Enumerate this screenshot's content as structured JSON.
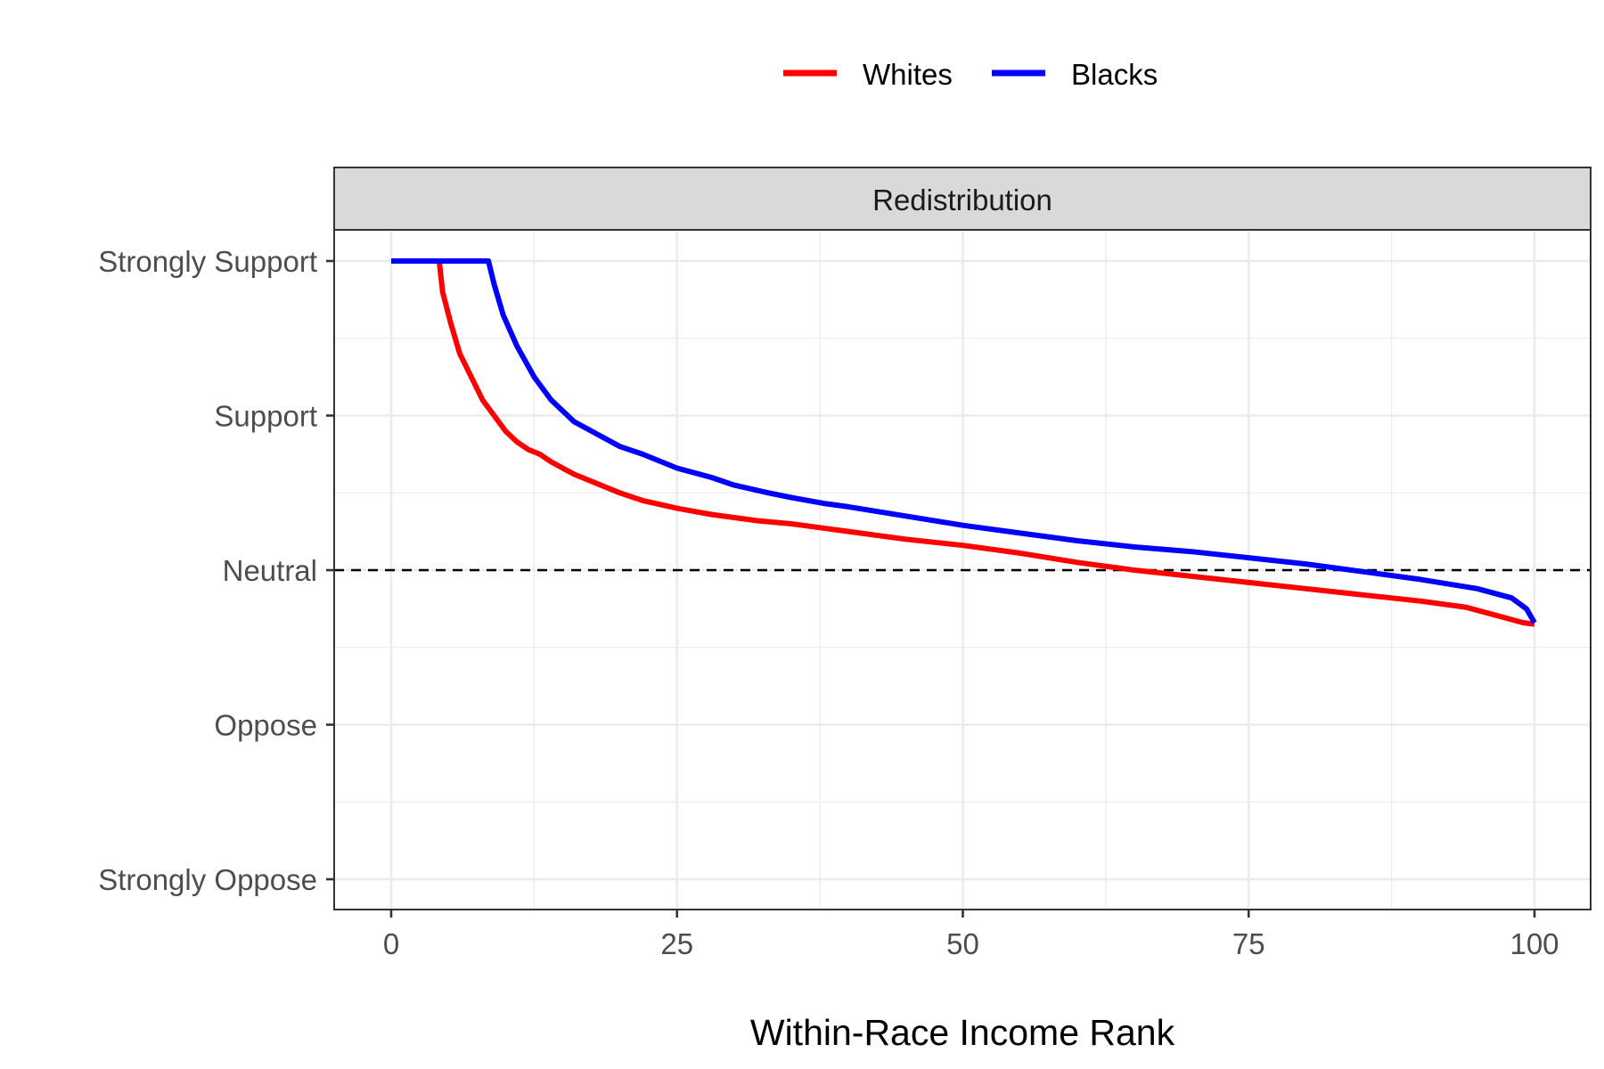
{
  "chart_data": {
    "type": "line",
    "title": "",
    "facet_label": "Redistribution",
    "xlabel": "Within-Race Income Rank",
    "ylabel": "",
    "xlim": [
      0,
      100
    ],
    "ylim": [
      -2,
      2
    ],
    "x_ticks": [
      0,
      25,
      50,
      75,
      100
    ],
    "x_tick_labels": [
      "0",
      "25",
      "50",
      "75",
      "100"
    ],
    "y_ticks": [
      2,
      1,
      0,
      -1,
      -2
    ],
    "y_tick_labels": [
      "Strongly Support",
      "Support",
      "Neutral",
      "Oppose",
      "Strongly Oppose"
    ],
    "reference_line": {
      "y": 0,
      "style": "dashed",
      "color": "#000000"
    },
    "legend_position": "top",
    "grid": true,
    "series": [
      {
        "name": "Whites",
        "color": "#ff0000",
        "points": [
          [
            0,
            2.0
          ],
          [
            4.2,
            2.0
          ],
          [
            4.5,
            1.8
          ],
          [
            5.2,
            1.6
          ],
          [
            6,
            1.4
          ],
          [
            7,
            1.25
          ],
          [
            8,
            1.1
          ],
          [
            9,
            1.0
          ],
          [
            10,
            0.9
          ],
          [
            11,
            0.83
          ],
          [
            12,
            0.78
          ],
          [
            13,
            0.75
          ],
          [
            14,
            0.7
          ],
          [
            15,
            0.66
          ],
          [
            16,
            0.62
          ],
          [
            18,
            0.56
          ],
          [
            20,
            0.5
          ],
          [
            22,
            0.45
          ],
          [
            25,
            0.4
          ],
          [
            28,
            0.36
          ],
          [
            30,
            0.34
          ],
          [
            32,
            0.32
          ],
          [
            35,
            0.3
          ],
          [
            38,
            0.27
          ],
          [
            40,
            0.25
          ],
          [
            45,
            0.2
          ],
          [
            50,
            0.16
          ],
          [
            55,
            0.11
          ],
          [
            60,
            0.05
          ],
          [
            65,
            0.0
          ],
          [
            70,
            -0.04
          ],
          [
            75,
            -0.08
          ],
          [
            80,
            -0.12
          ],
          [
            85,
            -0.16
          ],
          [
            90,
            -0.2
          ],
          [
            94,
            -0.24
          ],
          [
            97,
            -0.3
          ],
          [
            99,
            -0.34
          ],
          [
            100,
            -0.35
          ]
        ]
      },
      {
        "name": "Blacks",
        "color": "#0000ff",
        "points": [
          [
            0,
            2.0
          ],
          [
            8.5,
            2.0
          ],
          [
            9,
            1.85
          ],
          [
            9.8,
            1.65
          ],
          [
            11,
            1.45
          ],
          [
            12.5,
            1.25
          ],
          [
            14,
            1.1
          ],
          [
            15,
            1.03
          ],
          [
            16,
            0.96
          ],
          [
            18,
            0.88
          ],
          [
            20,
            0.8
          ],
          [
            22,
            0.75
          ],
          [
            25,
            0.66
          ],
          [
            28,
            0.6
          ],
          [
            30,
            0.55
          ],
          [
            33,
            0.5
          ],
          [
            35,
            0.47
          ],
          [
            38,
            0.43
          ],
          [
            40,
            0.41
          ],
          [
            45,
            0.35
          ],
          [
            50,
            0.29
          ],
          [
            55,
            0.24
          ],
          [
            60,
            0.19
          ],
          [
            65,
            0.15
          ],
          [
            70,
            0.12
          ],
          [
            75,
            0.08
          ],
          [
            80,
            0.04
          ],
          [
            85,
            -0.01
          ],
          [
            90,
            -0.06
          ],
          [
            95,
            -0.12
          ],
          [
            98,
            -0.18
          ],
          [
            99.3,
            -0.25
          ],
          [
            100,
            -0.34
          ]
        ]
      }
    ]
  }
}
